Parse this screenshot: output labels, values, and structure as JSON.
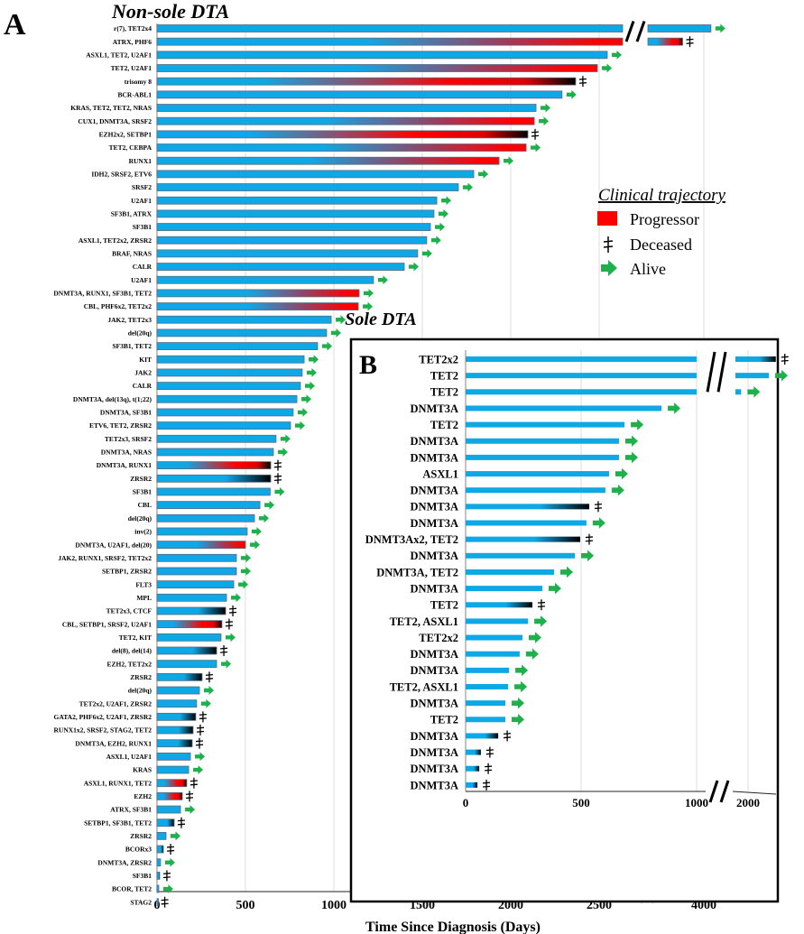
{
  "chart_data": [
    {
      "type": "bar",
      "subtype": "swimmer",
      "panel": "A",
      "title": "Non-sole DTA",
      "xlabel": "Time Since Diagnosis (Days)",
      "xticks": [
        "0",
        "500",
        "1000",
        "1500",
        "2000",
        "2500",
        "4000"
      ],
      "axis_break": true,
      "grid": true,
      "rows": [
        {
          "label": "r(7), TET2x4",
          "days": 4040,
          "progressor": false,
          "status": "alive"
        },
        {
          "label": "ATRX, PHF6",
          "days": 3880,
          "progressor": true,
          "status": "deceased"
        },
        {
          "label": "ASXL1, TET2, U2AF1",
          "days": 2546,
          "progressor": false,
          "status": "alive"
        },
        {
          "label": "TET2, U2AF1",
          "days": 2490,
          "progressor": true,
          "status": "alive"
        },
        {
          "label": "trisomy 8",
          "days": 2367,
          "progressor": true,
          "status": "deceased"
        },
        {
          "label": "BCR-ABL1",
          "days": 2290,
          "progressor": false,
          "status": "alive"
        },
        {
          "label": "KRAS, TET2, TET2, NRAS",
          "days": 2143,
          "progressor": false,
          "status": "alive"
        },
        {
          "label": "CUX1, DNMT3A, SRSF2",
          "days": 2133,
          "progressor": true,
          "status": "alive"
        },
        {
          "label": "EZH2x2, SETBP1",
          "days": 2097,
          "progressor": true,
          "status": "deceased"
        },
        {
          "label": "TET2, CEBPA",
          "days": 2087,
          "progressor": true,
          "status": "alive"
        },
        {
          "label": "RUNX1",
          "days": 1934,
          "progressor": true,
          "status": "alive"
        },
        {
          "label": "IDH2, SRSF2, ETV6",
          "days": 1791,
          "progressor": false,
          "status": "alive"
        },
        {
          "label": "SRSF2",
          "days": 1704,
          "progressor": false,
          "status": "alive"
        },
        {
          "label": "U2AF1",
          "days": 1582,
          "progressor": false,
          "status": "alive"
        },
        {
          "label": "SF3B1, ATRX",
          "days": 1566,
          "progressor": false,
          "status": "alive"
        },
        {
          "label": "SF3B1",
          "days": 1546,
          "progressor": false,
          "status": "alive"
        },
        {
          "label": "ASXL1, TET2x2, ZRSR2",
          "days": 1525,
          "progressor": false,
          "status": "alive"
        },
        {
          "label": "BRAF, NRAS",
          "days": 1474,
          "progressor": false,
          "status": "alive"
        },
        {
          "label": "CALR",
          "days": 1398,
          "progressor": false,
          "status": "alive"
        },
        {
          "label": "U2AF1",
          "days": 1224,
          "progressor": false,
          "status": "alive"
        },
        {
          "label": "DNMT3A, RUNX1, SF3B1, TET2",
          "days": 1143,
          "progressor": true,
          "status": "alive"
        },
        {
          "label": "CBL, PHF6x2, TET2x2",
          "days": 1138,
          "progressor": true,
          "status": "alive"
        },
        {
          "label": "JAK2, TET2x3",
          "days": 985,
          "progressor": false,
          "status": "alive"
        },
        {
          "label": "del(20q)",
          "days": 959,
          "progressor": false,
          "status": "alive"
        },
        {
          "label": "SF3B1, TET2",
          "days": 908,
          "progressor": false,
          "status": "alive"
        },
        {
          "label": "KIT",
          "days": 832,
          "progressor": false,
          "status": "alive"
        },
        {
          "label": "JAK2",
          "days": 821,
          "progressor": false,
          "status": "alive"
        },
        {
          "label": "CALR",
          "days": 811,
          "progressor": false,
          "status": "alive"
        },
        {
          "label": "DNMT3A, del(13q), t(1;22)",
          "days": 791,
          "progressor": false,
          "status": "alive"
        },
        {
          "label": "DNMT3A, SF3B1",
          "days": 770,
          "progressor": false,
          "status": "alive"
        },
        {
          "label": "ETV6, TET2, ZRSR2",
          "days": 755,
          "progressor": false,
          "status": "alive"
        },
        {
          "label": "TET2x3, SRSF2",
          "days": 673,
          "progressor": false,
          "status": "alive"
        },
        {
          "label": "DNMT3A, NRAS",
          "days": 658,
          "progressor": false,
          "status": "alive"
        },
        {
          "label": "DNMT3A, RUNX1",
          "days": 643,
          "progressor": true,
          "status": "deceased"
        },
        {
          "label": "ZRSR2",
          "days": 643,
          "progressor": false,
          "status": "deceased"
        },
        {
          "label": "SF3B1",
          "days": 640,
          "progressor": false,
          "status": "alive"
        },
        {
          "label": "CBL",
          "days": 582,
          "progressor": false,
          "status": "alive"
        },
        {
          "label": "del(20q)",
          "days": 551,
          "progressor": false,
          "status": "alive"
        },
        {
          "label": "inv(2)",
          "days": 510,
          "progressor": false,
          "status": "alive"
        },
        {
          "label": "DNMT3A, U2AF1, del(20)",
          "days": 500,
          "progressor": true,
          "status": "alive"
        },
        {
          "label": "JAK2, RUNX1, SRSF2, TET2x2",
          "days": 449,
          "progressor": false,
          "status": "alive"
        },
        {
          "label": "SETBP1, ZRSR2",
          "days": 449,
          "progressor": false,
          "status": "alive"
        },
        {
          "label": "FLT3",
          "days": 434,
          "progressor": false,
          "status": "alive"
        },
        {
          "label": "MPL",
          "days": 393,
          "progressor": false,
          "status": "alive"
        },
        {
          "label": "TET2x3, CTCF",
          "days": 388,
          "progressor": false,
          "status": "deceased"
        },
        {
          "label": "CBL, SETBP1, SRSF2, U2AF1",
          "days": 367,
          "progressor": true,
          "status": "deceased"
        },
        {
          "label": "TET2, KIT",
          "days": 362,
          "progressor": false,
          "status": "alive"
        },
        {
          "label": "del(8), del(14)",
          "days": 337,
          "progressor": false,
          "status": "deceased"
        },
        {
          "label": "EZH2, TET2x2",
          "days": 337,
          "progressor": false,
          "status": "alive"
        },
        {
          "label": "ZRSR2",
          "days": 255,
          "progressor": false,
          "status": "deceased"
        },
        {
          "label": "del(20q)",
          "days": 240,
          "progressor": false,
          "status": "alive"
        },
        {
          "label": "TET2x2, U2AF1, ZRSR2",
          "days": 224,
          "progressor": false,
          "status": "alive"
        },
        {
          "label": "GATA2, PHF6x2, U2AF1, ZRSR2",
          "days": 219,
          "progressor": false,
          "status": "deceased"
        },
        {
          "label": "RUNX1x2, SRSF2, STAG2, TET2",
          "days": 204,
          "progressor": false,
          "status": "deceased"
        },
        {
          "label": "DNMT3A, EZH2, RUNX1",
          "days": 199,
          "progressor": false,
          "status": "deceased"
        },
        {
          "label": "ASXL1, U2AF1",
          "days": 189,
          "progressor": false,
          "status": "alive"
        },
        {
          "label": "KRAS",
          "days": 179,
          "progressor": false,
          "status": "alive"
        },
        {
          "label": "ASXL1, RUNX1, TET2",
          "days": 168,
          "progressor": true,
          "status": "deceased"
        },
        {
          "label": "EZH2",
          "days": 143,
          "progressor": true,
          "status": "deceased"
        },
        {
          "label": "ATRX, SF3B1",
          "days": 133,
          "progressor": false,
          "status": "alive"
        },
        {
          "label": "SETBP1, SF3B1, TET2",
          "days": 97,
          "progressor": false,
          "status": "deceased"
        },
        {
          "label": "ZRSR2",
          "days": 51,
          "progressor": false,
          "status": "alive"
        },
        {
          "label": "BCORx3",
          "days": 36,
          "progressor": false,
          "status": "deceased"
        },
        {
          "label": "DNMT3A, ZRSR2",
          "days": 20,
          "progressor": false,
          "status": "alive"
        },
        {
          "label": "SF3B1",
          "days": 15,
          "progressor": false,
          "status": "deceased"
        },
        {
          "label": "BCOR, TET2",
          "days": 10,
          "progressor": false,
          "status": "alive"
        },
        {
          "label": "STAG2",
          "days": 3,
          "progressor": false,
          "status": "deceased"
        }
      ]
    },
    {
      "type": "bar",
      "subtype": "swimmer",
      "panel": "B",
      "title": "Sole DTA",
      "xticks": [
        "0",
        "500",
        "1000",
        "2000"
      ],
      "axis_break": true,
      "grid": true,
      "rows": [
        {
          "label": "TET2x2",
          "days": 2120,
          "status": "deceased"
        },
        {
          "label": "TET2",
          "days": 2090,
          "status": "alive"
        },
        {
          "label": "TET2",
          "days": 1970,
          "status": "alive"
        },
        {
          "label": "DNMT3A",
          "days": 848,
          "status": "alive"
        },
        {
          "label": "TET2",
          "days": 688,
          "status": "alive"
        },
        {
          "label": "DNMT3A",
          "days": 664,
          "status": "alive"
        },
        {
          "label": "DNMT3A",
          "days": 664,
          "status": "alive"
        },
        {
          "label": "ASXL1",
          "days": 621,
          "status": "alive"
        },
        {
          "label": "DNMT3A",
          "days": 605,
          "status": "alive"
        },
        {
          "label": "DNMT3A",
          "days": 535,
          "status": "deceased"
        },
        {
          "label": "DNMT3A",
          "days": 523,
          "status": "alive"
        },
        {
          "label": "DNMT3Ax2, TET2",
          "days": 496,
          "status": "deceased"
        },
        {
          "label": "DNMT3A",
          "days": 473,
          "status": "alive"
        },
        {
          "label": "DNMT3A, TET2",
          "days": 383,
          "status": "alive"
        },
        {
          "label": "DNMT3A",
          "days": 332,
          "status": "alive"
        },
        {
          "label": "TET2",
          "days": 289,
          "status": "deceased"
        },
        {
          "label": "TET2, ASXL1",
          "days": 270,
          "status": "alive"
        },
        {
          "label": "TET2x2",
          "days": 246,
          "status": "alive"
        },
        {
          "label": "DNMT3A",
          "days": 234,
          "status": "alive"
        },
        {
          "label": "DNMT3A",
          "days": 188,
          "status": "alive"
        },
        {
          "label": "TET2, ASXL1",
          "days": 184,
          "status": "alive"
        },
        {
          "label": "DNMT3A",
          "days": 172,
          "status": "alive"
        },
        {
          "label": "TET2",
          "days": 172,
          "status": "alive"
        },
        {
          "label": "DNMT3A",
          "days": 141,
          "status": "deceased"
        },
        {
          "label": "DNMT3A",
          "days": 66,
          "status": "deceased"
        },
        {
          "label": "DNMT3A",
          "days": 59,
          "status": "deceased"
        },
        {
          "label": "DNMT3A",
          "days": 51,
          "status": "deceased"
        }
      ]
    }
  ],
  "panel_letters": {
    "a": "A",
    "b": "B"
  },
  "legend": {
    "title": "Clinical trajectory",
    "items": [
      {
        "label": "Progressor",
        "icon": "red-square",
        "color": "#ff0000"
      },
      {
        "label": "Deceased",
        "icon": "double-dagger",
        "glyph": "ǂ"
      },
      {
        "label": "Alive",
        "icon": "green-arrow",
        "color": "#1db04b"
      }
    ]
  },
  "colors": {
    "bar": "#0fa8e6",
    "progressor": "#ff0000",
    "deceased": "#000000",
    "alive": "#1db04b",
    "grid": "#dddddd"
  }
}
